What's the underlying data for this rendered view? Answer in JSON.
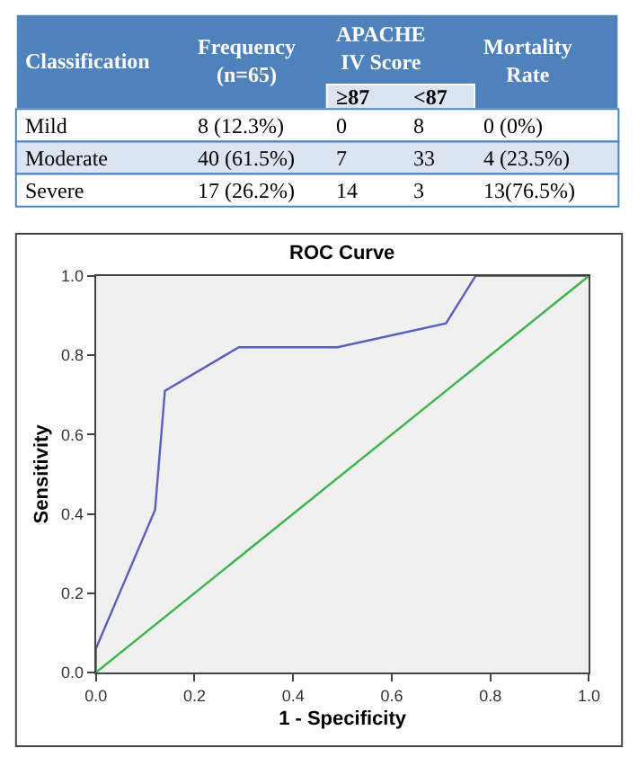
{
  "chart_data": [
    {
      "type": "other",
      "xlabel": "Classification",
      "categories": [
        "Frequency (n=65)",
        "≥87",
        "<87",
        "Mortality Rate"
      ],
      "annotations": [
        "APACHE IV Score"
      ],
      "y_categories": [
        "Mild",
        "Moderate",
        "Severe"
      ],
      "cell_labels": [
        [
          "8 (12.3%)",
          "0",
          "8",
          "0 (0%)"
        ],
        [
          "40 (61.5%)",
          "7",
          "33",
          "4 (23.5%)"
        ],
        [
          "17 (26.2%)",
          "14",
          "3",
          "13(76.5%)"
        ]
      ]
    },
    {
      "type": "line",
      "title": "ROC Curve",
      "xlabel": "1 - Specificity",
      "ylabel": "Sensitivity",
      "xlim": [
        0,
        1
      ],
      "ylim": [
        0,
        1
      ],
      "xticks": [
        {
          "value": 0,
          "label": "0.0"
        },
        {
          "value": 0.2,
          "label": "0.2"
        },
        {
          "value": 0.4,
          "label": "0.4"
        },
        {
          "value": 0.6,
          "label": "0.6"
        },
        {
          "value": 0.8,
          "label": "0.8"
        },
        {
          "value": 1,
          "label": "1.0"
        }
      ],
      "yticks": [
        {
          "value": 0,
          "label": "0.0"
        },
        {
          "value": 0.2,
          "label": "0.2"
        },
        {
          "value": 0.4,
          "label": "0.4"
        },
        {
          "value": 0.6,
          "label": "0.6"
        },
        {
          "value": 0.8,
          "label": "0.8"
        },
        {
          "value": 1,
          "label": "1.0"
        }
      ],
      "grid": false,
      "series": [
        {
          "color": "#5a5fc0",
          "x": [
            0,
            0,
            0.12,
            0.14,
            0.29,
            0.49,
            0.71,
            0.77,
            1
          ],
          "values": [
            0,
            0.06,
            0.41,
            0.71,
            0.82,
            0.82,
            0.88,
            1,
            1
          ]
        },
        {
          "color": "#3cb44b",
          "x": [
            0,
            1
          ],
          "values": [
            0,
            1
          ]
        }
      ]
    }
  ]
}
